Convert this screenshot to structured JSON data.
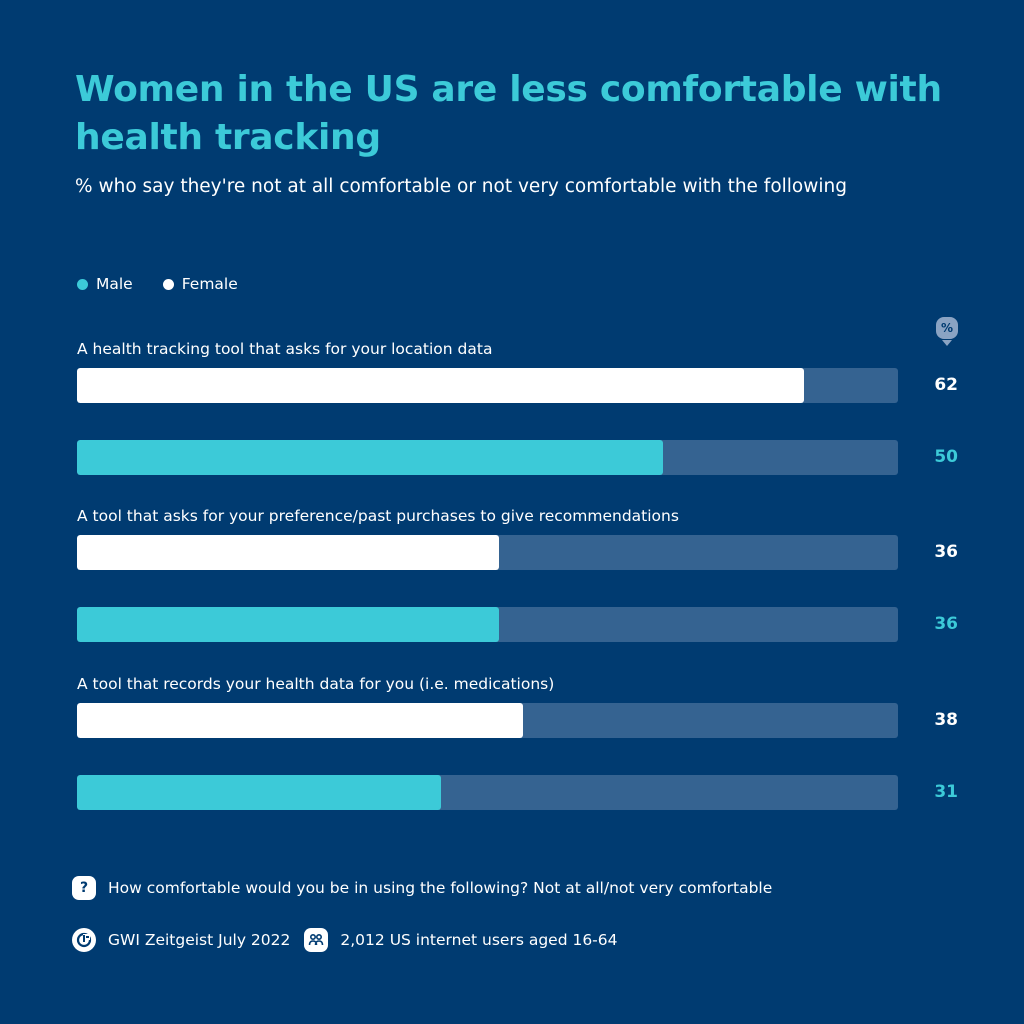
{
  "chart_data": {
    "type": "bar",
    "orientation": "horizontal",
    "title": "Women in the US are less comfortable with health tracking",
    "subtitle": "% who say they're not at all comfortable or not very comfortable with the following",
    "unit_label": "%",
    "categories": [
      "A health tracking tool that asks for your location data",
      "A tool that asks for your preference/past purchases to give recommendations",
      "A tool that records your health data for you (i.e. medications)"
    ],
    "series": [
      {
        "name": "Female",
        "color": "#ffffff",
        "values": [
          62,
          36,
          38
        ]
      },
      {
        "name": "Male",
        "color": "#3ccad8",
        "values": [
          50,
          36,
          31
        ]
      }
    ],
    "xlim": [
      0,
      70
    ],
    "grid": false,
    "legend_placement": "top-left",
    "legend_order": [
      "Male",
      "Female"
    ]
  },
  "colors": {
    "background": "#003b71",
    "track": "#356391",
    "accent": "#3ccad8"
  },
  "footer": {
    "question": "How comfortable would you be in using the following? Not at all/not very comfortable",
    "question_icon": "question-icon",
    "source": "GWI Zeitgeist July 2022",
    "source_icon": "gwi-logo-icon",
    "sample": "2,012 US internet users aged 16-64",
    "sample_icon": "people-icon"
  }
}
